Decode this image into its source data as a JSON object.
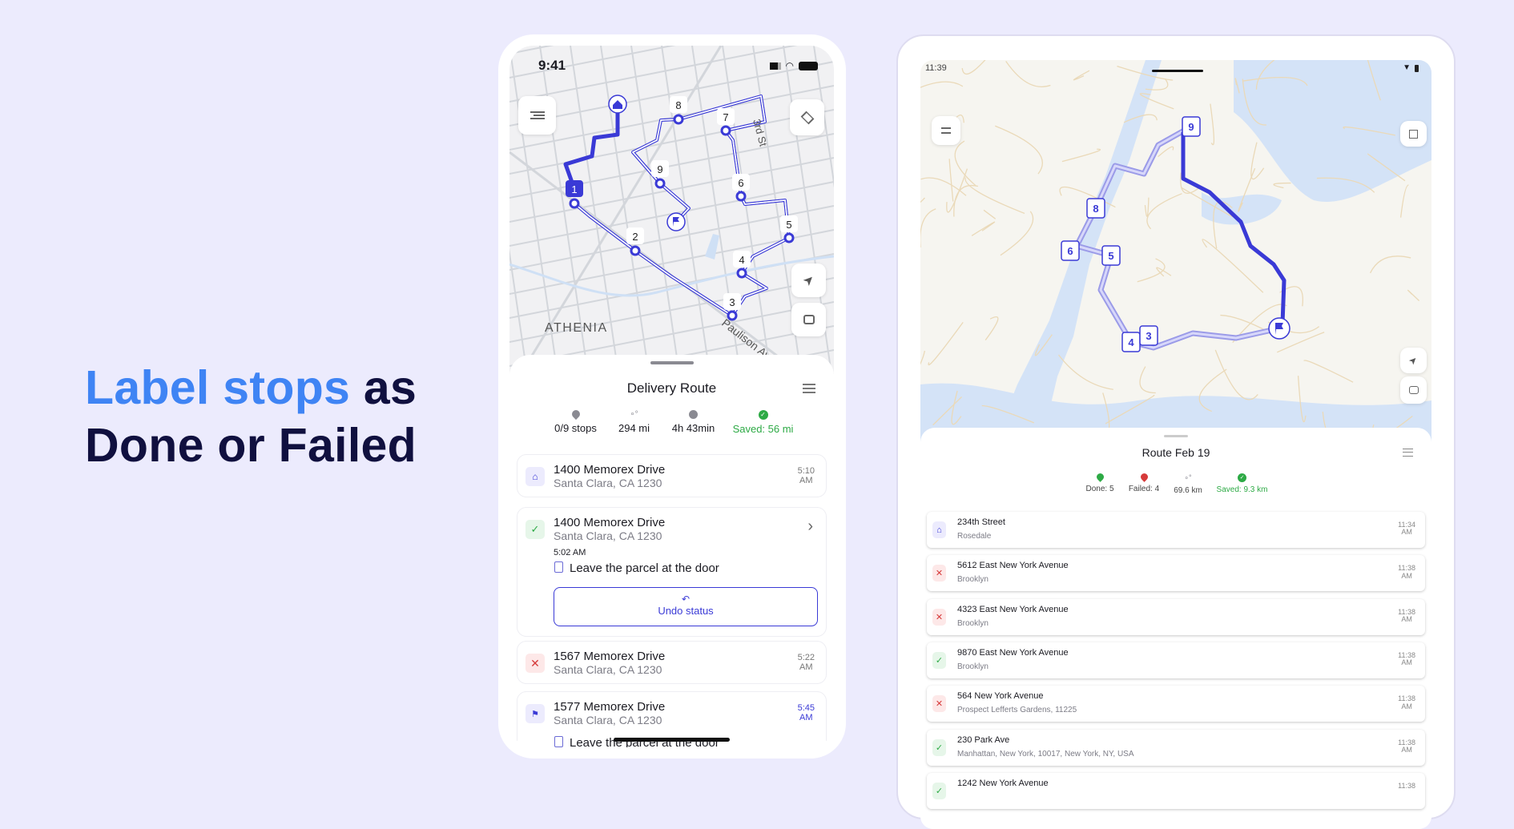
{
  "headline": {
    "highlight": "Label stops",
    "rest1": " as",
    "line2": "Done or Failed"
  },
  "colors": {
    "accent": "#3a3ad6",
    "headline_blue": "#3f84f4",
    "headline_dark": "#10103f",
    "success": "#2daa45",
    "fail": "#d63a3a"
  },
  "phone": {
    "status_time": "9:41",
    "map_labels": {
      "area": "ATHENIA",
      "street": "Paulison Ave",
      "street2": "3rd St"
    },
    "stop_labels": [
      "1",
      "2",
      "3",
      "4",
      "5",
      "6",
      "7",
      "8",
      "9"
    ],
    "sheet": {
      "title": "Delivery Route",
      "stats": [
        {
          "icon": "pin-icon",
          "label": "0/9 stops"
        },
        {
          "icon": "route-icon",
          "label": "294 mi"
        },
        {
          "icon": "clock-icon",
          "label": "4h 43min"
        },
        {
          "icon": "check-circle-icon",
          "label": "Saved: 56 mi"
        }
      ],
      "stops": [
        {
          "status": "home",
          "title": "1400 Memorex Drive",
          "subtitle": "Santa Clara, CA 1230",
          "time": "5:10",
          "ampm": "AM"
        },
        {
          "status": "done",
          "title": "1400 Memorex Drive",
          "subtitle": "Santa Clara, CA 1230",
          "completed_time": "5:02 AM",
          "note": "Leave the parcel at the door",
          "undo_label": "Undo status"
        },
        {
          "status": "failed",
          "title": "1567 Memorex Drive",
          "subtitle": "Santa Clara, CA 1230",
          "time": "5:22",
          "ampm": "AM"
        },
        {
          "status": "end",
          "title": "1577 Memorex Drive",
          "subtitle": "Santa Clara, CA 1230",
          "time": "5:45",
          "ampm": "AM",
          "note": "Leave the parcel at the door"
        }
      ]
    }
  },
  "tablet": {
    "status_time": "11:39",
    "stop_labels": [
      "9",
      "8",
      "6",
      "5",
      "4",
      "3"
    ],
    "sheet": {
      "title": "Route Feb 19",
      "stats": [
        {
          "icon": "pin-green-icon",
          "label": "Done: 5"
        },
        {
          "icon": "pin-red-icon",
          "label": "Failed: 4"
        },
        {
          "icon": "route-icon",
          "label": "69.6 km"
        },
        {
          "icon": "check-circle-icon",
          "label": "Saved: 9.3 km"
        }
      ],
      "stops": [
        {
          "status": "home",
          "title": "234th Street",
          "subtitle": "Rosedale",
          "time": "11:34",
          "ampm": "AM"
        },
        {
          "status": "failed",
          "title": "5612 East New York Avenue",
          "subtitle": "Brooklyn",
          "time": "11:38",
          "ampm": "AM"
        },
        {
          "status": "failed",
          "title": "4323 East New York Avenue",
          "subtitle": "Brooklyn",
          "time": "11:38",
          "ampm": "AM"
        },
        {
          "status": "done",
          "title": "9870 East New York Avenue",
          "subtitle": "Brooklyn",
          "time": "11:38",
          "ampm": "AM"
        },
        {
          "status": "failed",
          "title": "564 New York Avenue",
          "subtitle": "Prospect Lefferts Gardens, 11225",
          "time": "11:38",
          "ampm": "AM"
        },
        {
          "status": "done",
          "title": "230 Park Ave",
          "subtitle": "Manhattan, New York, 10017, New York, NY, USA",
          "time": "11:38",
          "ampm": "AM"
        },
        {
          "status": "done",
          "title": "1242 New York Avenue",
          "subtitle": "",
          "time": "11:38",
          "ampm": ""
        }
      ]
    }
  }
}
